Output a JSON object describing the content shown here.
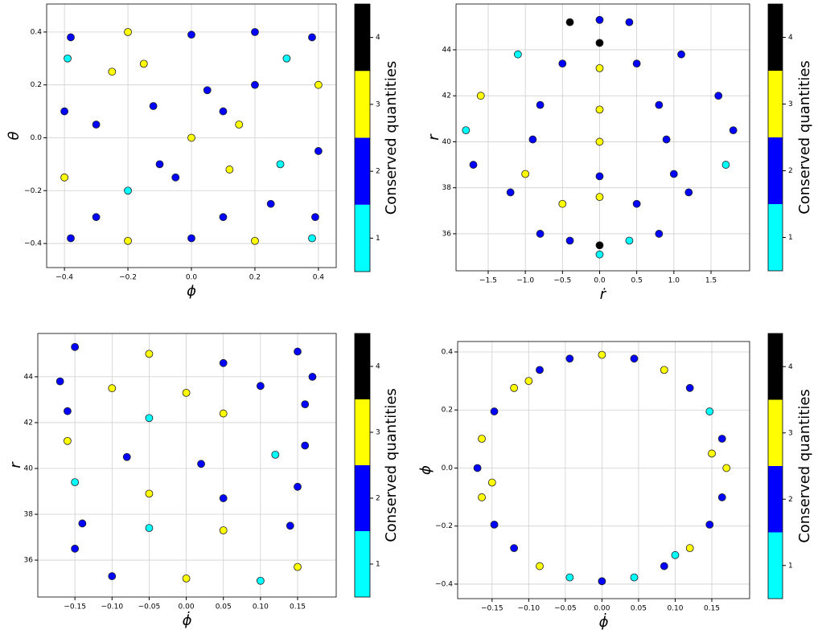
{
  "chart_data": [
    {
      "type": "scatter",
      "xlabel": "ϕ",
      "ylabel": "θ",
      "x": [
        -0.38,
        -0.3,
        -0.2,
        -0.1,
        0,
        0.1,
        0.2,
        0.3,
        0.38,
        -0.38,
        -0.25,
        -0.12,
        0.12,
        0.25,
        0.38,
        -0.4,
        -0.4,
        -0.39,
        0.4,
        0.4,
        0.39,
        -0.2,
        0,
        0.2,
        -0.2,
        0,
        0.2,
        -0.15,
        0.05,
        0.15,
        -0.05,
        0.28,
        -0.3,
        0.1
      ],
      "y": [
        -0.38,
        -0.3,
        -0.2,
        -0.1,
        0,
        0.1,
        0.2,
        0.3,
        0.38,
        0.38,
        0.25,
        0.12,
        -0.12,
        -0.25,
        -0.38,
        0.1,
        -0.15,
        0.3,
        0.2,
        -0.05,
        -0.3,
        0.4,
        0.39,
        0.4,
        -0.39,
        -0.38,
        -0.39,
        0.28,
        0.18,
        0.05,
        -0.15,
        -0.1,
        0.05,
        -0.3
      ],
      "values": [
        2,
        2,
        1,
        2,
        3,
        2,
        2,
        1,
        2,
        2,
        3,
        2,
        3,
        2,
        1,
        2,
        3,
        1,
        3,
        2,
        2,
        3,
        2,
        2,
        3,
        2,
        3,
        3,
        2,
        3,
        2,
        1,
        2,
        2
      ],
      "xlim": [
        -0.456,
        0.456
      ],
      "ylim": [
        -0.491,
        0.506
      ],
      "xticks": [
        {
          "value": -0.4,
          "label": "−0.4"
        },
        {
          "value": -0.2,
          "label": "−0.2"
        },
        {
          "value": 0,
          "label": "0.0"
        },
        0.2,
        0.4
      ],
      "yticks": [
        {
          "value": -0.4,
          "label": "−0.4"
        },
        {
          "value": -0.2,
          "label": "−0.2"
        },
        {
          "value": 0,
          "label": "0.0"
        },
        0.2,
        0.4
      ],
      "grid": true,
      "colorbar": {
        "label": "Conserved quantities",
        "colors": [
          "#00ffff",
          "#0000ff",
          "#ffff00",
          "#000000"
        ],
        "bounds": [
          0.5,
          1.5,
          2.5,
          3.5,
          4.5
        ],
        "ticks": [
          1,
          2,
          3,
          4
        ]
      }
    },
    {
      "type": "scatter",
      "xlabel": "ṙ",
      "ylabel": "r",
      "x": [
        -0.8,
        -0.4,
        0,
        0.4,
        0.8,
        0,
        -1.2,
        -0.5,
        0,
        0.5,
        1.2,
        -1.7,
        -1.0,
        0,
        1.0,
        1.7,
        -1.8,
        -0.9,
        0,
        0.9,
        1.8,
        -1.6,
        -0.8,
        0,
        0.8,
        1.6,
        -1.1,
        -0.5,
        0,
        0.5,
        1.1,
        -0.4,
        0,
        0.4,
        0
      ],
      "y": [
        36,
        35.7,
        35.5,
        35.7,
        36,
        35.1,
        37.8,
        37.3,
        37.6,
        37.3,
        37.8,
        39,
        38.6,
        38.5,
        38.6,
        39,
        40.5,
        40.1,
        40,
        40.1,
        40.5,
        42,
        41.6,
        41.4,
        41.6,
        42,
        43.8,
        43.4,
        43.2,
        43.4,
        43.8,
        45.2,
        45.3,
        45.2,
        44.3
      ],
      "values": [
        2,
        2,
        4,
        1,
        2,
        1,
        2,
        3,
        3,
        2,
        2,
        2,
        3,
        2,
        2,
        1,
        1,
        2,
        3,
        2,
        2,
        3,
        2,
        3,
        2,
        2,
        1,
        2,
        3,
        2,
        2,
        4,
        2,
        2,
        4
      ],
      "xlim": [
        -1.933,
        2.02
      ],
      "ylim": [
        34.39,
        45.99
      ],
      "xticks": [
        {
          "value": -1.5,
          "label": "−1.5"
        },
        {
          "value": -1,
          "label": "−1.0"
        },
        {
          "value": -0.5,
          "label": "−0.5"
        },
        {
          "value": 0,
          "label": "0.0"
        },
        0.5,
        {
          "value": 1,
          "label": "1.0"
        },
        1.5
      ],
      "yticks": [
        36,
        38,
        40,
        42,
        44
      ],
      "grid": true,
      "colorbar": {
        "label": "Conserved quantities",
        "colors": [
          "#00ffff",
          "#0000ff",
          "#ffff00",
          "#000000"
        ],
        "bounds": [
          0.5,
          1.5,
          2.5,
          3.5,
          4.5
        ],
        "ticks": [
          1,
          2,
          3,
          4
        ]
      }
    },
    {
      "type": "scatter",
      "xlabel": "ϕ̇",
      "ylabel": "r",
      "x": [
        -0.15,
        -0.05,
        0.05,
        0.15,
        -0.17,
        -0.1,
        0,
        0.1,
        0.17,
        -0.16,
        -0.05,
        0.05,
        0.16,
        -0.16,
        -0.08,
        0.02,
        0.12,
        0.16,
        -0.15,
        -0.05,
        0.05,
        0.15,
        -0.14,
        -0.05,
        0.05,
        0.14,
        -0.15,
        -0.1,
        0,
        0.1,
        0.15
      ],
      "y": [
        45.3,
        45,
        44.6,
        45.1,
        43.8,
        43.5,
        43.3,
        43.6,
        44,
        42.5,
        42.2,
        42.4,
        42.8,
        41.2,
        40.5,
        40.2,
        40.6,
        41,
        39.4,
        38.9,
        38.7,
        39.2,
        37.6,
        37.4,
        37.3,
        37.5,
        36.5,
        35.3,
        35.2,
        35.1,
        35.7
      ],
      "values": [
        2,
        3,
        2,
        2,
        2,
        3,
        3,
        2,
        2,
        2,
        1,
        3,
        2,
        3,
        2,
        2,
        1,
        2,
        1,
        3,
        2,
        2,
        2,
        1,
        3,
        2,
        2,
        2,
        3,
        1,
        3
      ],
      "xlim": [
        -0.2,
        0.202
      ],
      "ylim": [
        34.39,
        45.89
      ],
      "xticks": [
        {
          "value": -0.15,
          "label": "−0.15"
        },
        {
          "value": -0.1,
          "label": "−0.10"
        },
        {
          "value": -0.05,
          "label": "−0.05"
        },
        {
          "value": 0,
          "label": "0.00"
        },
        0.05,
        {
          "value": 0.1,
          "label": "0.10"
        },
        0.15
      ],
      "yticks": [
        36,
        38,
        40,
        42,
        44
      ],
      "grid": true,
      "colorbar": {
        "label": "Conserved quantities",
        "colors": [
          "#00ffff",
          "#0000ff",
          "#ffff00",
          "#000000"
        ],
        "bounds": [
          0.5,
          1.5,
          2.5,
          3.5,
          4.5
        ],
        "ticks": [
          1,
          2,
          3,
          4
        ]
      }
    },
    {
      "type": "scatter",
      "xlabel": "ϕ̇",
      "ylabel": "ϕ",
      "x": [
        0.17,
        0.164,
        0.147,
        0.12,
        0.085,
        0.044,
        0,
        -0.044,
        -0.085,
        -0.12,
        -0.147,
        -0.164,
        -0.17,
        -0.164,
        -0.147,
        -0.12,
        -0.085,
        -0.044,
        0,
        0.044,
        0.085,
        0.12,
        0.147,
        0.164,
        0.15,
        -0.15,
        0.1,
        -0.1
      ],
      "y": [
        0,
        0.101,
        0.195,
        0.276,
        0.338,
        0.377,
        0.39,
        0.377,
        0.338,
        0.276,
        0.195,
        0.101,
        0,
        -0.101,
        -0.195,
        -0.276,
        -0.338,
        -0.377,
        -0.39,
        -0.377,
        -0.338,
        -0.276,
        -0.195,
        -0.101,
        0.05,
        -0.05,
        -0.3,
        0.3
      ],
      "values": [
        3,
        2,
        1,
        2,
        3,
        2,
        3,
        2,
        2,
        3,
        2,
        3,
        2,
        3,
        2,
        2,
        3,
        1,
        2,
        1,
        2,
        3,
        2,
        2,
        3,
        3,
        1,
        3
      ],
      "xlim": [
        -0.197,
        0.2016
      ],
      "ylim": [
        -0.45,
        0.436
      ],
      "xticks": [
        {
          "value": -0.15,
          "label": "−0.15"
        },
        {
          "value": -0.1,
          "label": "−0.10"
        },
        {
          "value": -0.05,
          "label": "−0.05"
        },
        {
          "value": 0,
          "label": "0.00"
        },
        0.05,
        {
          "value": 0.1,
          "label": "0.10"
        },
        0.15
      ],
      "yticks": [
        {
          "value": -0.4,
          "label": "−0.4"
        },
        {
          "value": -0.2,
          "label": "−0.2"
        },
        {
          "value": 0,
          "label": "0.0"
        },
        0.2,
        0.4
      ],
      "grid": true,
      "colorbar": {
        "label": "Conserved quantities",
        "colors": [
          "#00ffff",
          "#0000ff",
          "#ffff00",
          "#000000"
        ],
        "bounds": [
          0.5,
          1.5,
          2.5,
          3.5,
          4.5
        ],
        "ticks": [
          1,
          2,
          3,
          4
        ]
      }
    }
  ]
}
